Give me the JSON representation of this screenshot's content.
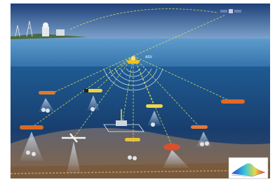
{
  "scene": {
    "label": "ASV"
  }
}
